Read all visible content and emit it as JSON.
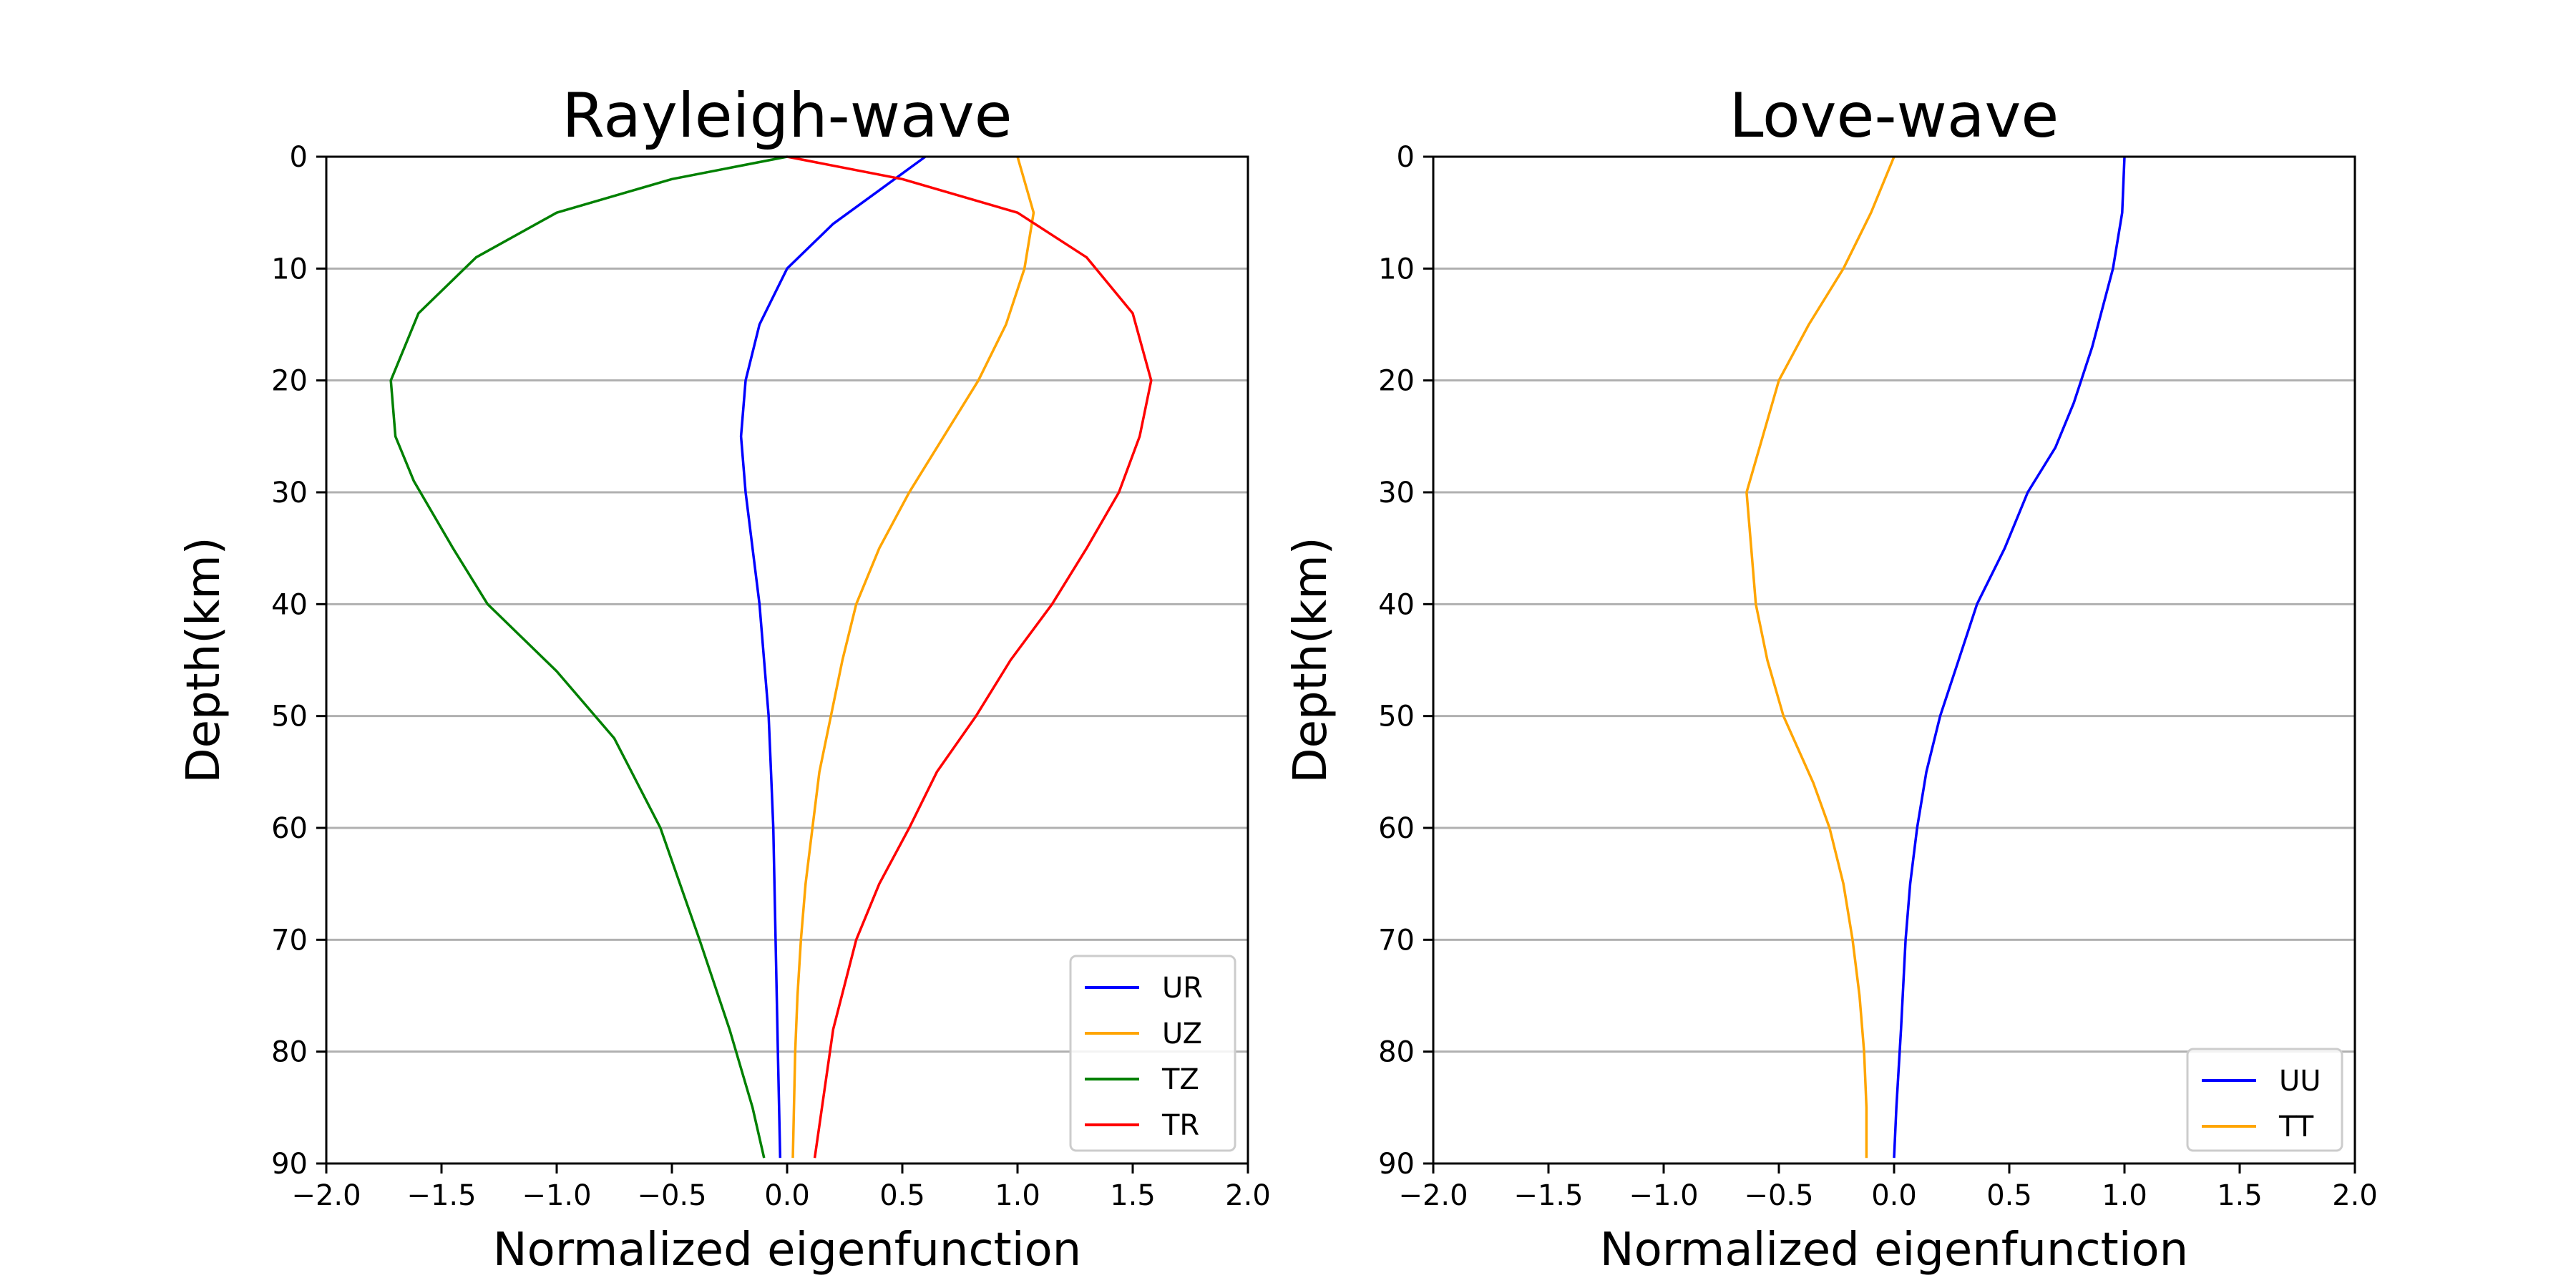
{
  "chart_data": [
    {
      "type": "line",
      "title": "Rayleigh-wave",
      "xlabel": "Normalized eigenfunction",
      "ylabel": "Depth(km)",
      "xlim": [
        -2.0,
        2.0
      ],
      "ylim": [
        90,
        0
      ],
      "y_inverted": true,
      "grid": "horizontal",
      "legend_position": "lower right",
      "x_ticks": [
        "−2.0",
        "−1.5",
        "−1.0",
        "−0.5",
        "0.0",
        "0.5",
        "1.0",
        "1.5",
        "2.0"
      ],
      "y_ticks": [
        "0",
        "10",
        "20",
        "30",
        "40",
        "50",
        "60",
        "70",
        "80",
        "90"
      ],
      "series": [
        {
          "name": "UR",
          "color": "#0000ff",
          "points": [
            [
              0.6,
              0
            ],
            [
              0.4,
              3
            ],
            [
              0.2,
              6
            ],
            [
              0.0,
              10
            ],
            [
              -0.12,
              15
            ],
            [
              -0.18,
              20
            ],
            [
              -0.2,
              25
            ],
            [
              -0.18,
              30
            ],
            [
              -0.15,
              35
            ],
            [
              -0.12,
              40
            ],
            [
              -0.1,
              45
            ],
            [
              -0.08,
              50
            ],
            [
              -0.07,
              55
            ],
            [
              -0.06,
              60
            ],
            [
              -0.05,
              70
            ],
            [
              -0.04,
              80
            ],
            [
              -0.03,
              89.5
            ]
          ]
        },
        {
          "name": "UZ",
          "color": "#ffa500",
          "points": [
            [
              1.0,
              0
            ],
            [
              1.07,
              5
            ],
            [
              1.03,
              10
            ],
            [
              0.95,
              15
            ],
            [
              0.83,
              20
            ],
            [
              0.68,
              25
            ],
            [
              0.53,
              30
            ],
            [
              0.4,
              35
            ],
            [
              0.3,
              40
            ],
            [
              0.24,
              45
            ],
            [
              0.19,
              50
            ],
            [
              0.14,
              55
            ],
            [
              0.11,
              60
            ],
            [
              0.08,
              65
            ],
            [
              0.06,
              70
            ],
            [
              0.045,
              75
            ],
            [
              0.035,
              80
            ],
            [
              0.025,
              89.5
            ]
          ]
        },
        {
          "name": "TZ",
          "color": "#008000",
          "points": [
            [
              0.0,
              0
            ],
            [
              -0.5,
              2
            ],
            [
              -1.0,
              5
            ],
            [
              -1.35,
              9
            ],
            [
              -1.6,
              14
            ],
            [
              -1.72,
              20
            ],
            [
              -1.7,
              25
            ],
            [
              -1.62,
              29
            ],
            [
              -1.45,
              35
            ],
            [
              -1.3,
              40
            ],
            [
              -1.0,
              46
            ],
            [
              -0.75,
              52
            ],
            [
              -0.55,
              60
            ],
            [
              -0.38,
              70
            ],
            [
              -0.25,
              78
            ],
            [
              -0.15,
              85
            ],
            [
              -0.1,
              89.5
            ]
          ]
        },
        {
          "name": "TR",
          "color": "#ff0000",
          "points": [
            [
              0.0,
              0
            ],
            [
              0.5,
              2
            ],
            [
              1.0,
              5
            ],
            [
              1.3,
              9
            ],
            [
              1.5,
              14
            ],
            [
              1.58,
              20
            ],
            [
              1.53,
              25
            ],
            [
              1.44,
              30
            ],
            [
              1.3,
              35
            ],
            [
              1.15,
              40
            ],
            [
              0.97,
              45
            ],
            [
              0.82,
              50
            ],
            [
              0.65,
              55
            ],
            [
              0.53,
              60
            ],
            [
              0.4,
              65
            ],
            [
              0.3,
              70
            ],
            [
              0.2,
              78
            ],
            [
              0.12,
              89.5
            ]
          ]
        }
      ]
    },
    {
      "type": "line",
      "title": "Love-wave",
      "xlabel": "Normalized eigenfunction",
      "ylabel": "Depth(km)",
      "xlim": [
        -2.0,
        2.0
      ],
      "ylim": [
        90,
        0
      ],
      "y_inverted": true,
      "grid": "horizontal",
      "legend_position": "lower right",
      "x_ticks": [
        "−2.0",
        "−1.5",
        "−1.0",
        "−0.5",
        "0.0",
        "0.5",
        "1.0",
        "1.5",
        "2.0"
      ],
      "y_ticks": [
        "0",
        "10",
        "20",
        "30",
        "40",
        "50",
        "60",
        "70",
        "80",
        "90"
      ],
      "series": [
        {
          "name": "UU",
          "color": "#0000ff",
          "points": [
            [
              1.0,
              0
            ],
            [
              0.99,
              5
            ],
            [
              0.95,
              10
            ],
            [
              0.86,
              17
            ],
            [
              0.78,
              22
            ],
            [
              0.7,
              26
            ],
            [
              0.58,
              30
            ],
            [
              0.48,
              35
            ],
            [
              0.36,
              40
            ],
            [
              0.28,
              45
            ],
            [
              0.2,
              50
            ],
            [
              0.14,
              55
            ],
            [
              0.1,
              60
            ],
            [
              0.07,
              65
            ],
            [
              0.05,
              70
            ],
            [
              0.03,
              78
            ],
            [
              0.01,
              85
            ],
            [
              0.0,
              89.5
            ]
          ]
        },
        {
          "name": "TT",
          "color": "#ffa500",
          "points": [
            [
              0.0,
              0
            ],
            [
              -0.1,
              5
            ],
            [
              -0.22,
              10
            ],
            [
              -0.37,
              15
            ],
            [
              -0.5,
              20
            ],
            [
              -0.57,
              25
            ],
            [
              -0.64,
              30
            ],
            [
              -0.62,
              35
            ],
            [
              -0.6,
              40
            ],
            [
              -0.55,
              45
            ],
            [
              -0.48,
              50
            ],
            [
              -0.35,
              56
            ],
            [
              -0.28,
              60
            ],
            [
              -0.22,
              65
            ],
            [
              -0.18,
              70
            ],
            [
              -0.15,
              75
            ],
            [
              -0.13,
              80
            ],
            [
              -0.12,
              85
            ],
            [
              -0.12,
              89.5
            ]
          ]
        }
      ]
    }
  ]
}
